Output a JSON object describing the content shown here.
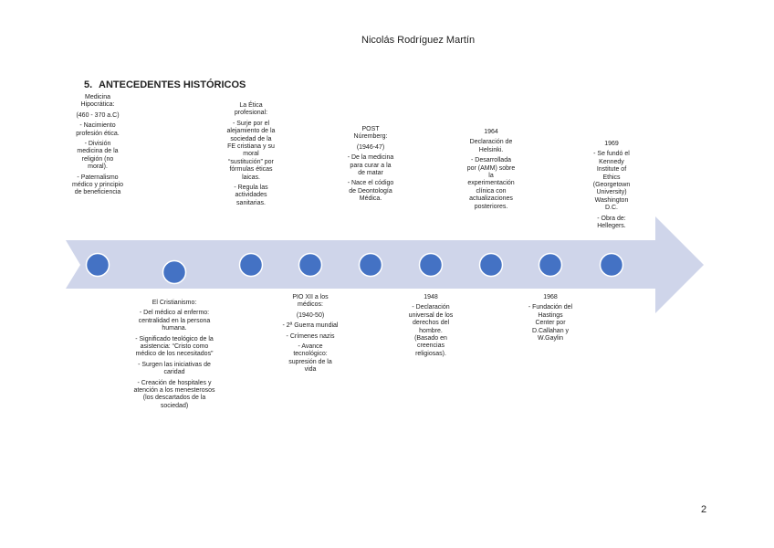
{
  "header": {
    "author": "Nicolás Rodríguez Martín"
  },
  "section": {
    "number": "5.",
    "title": "ANTECEDENTES HISTÓRICOS"
  },
  "timeline": {
    "top": [
      {
        "lines": [
          "Medicina Hipocrática:",
          "(460 - 370 a.C)",
          "- Nacimiento profesión ética.",
          "- División medicina de la religión (no moral).",
          "- Paternalismo médico y principio de beneficiencia"
        ]
      },
      {
        "lines": [
          "La Ética profesional:",
          "- Surje por el alejamiento de la sociedad de la FE cristiana y su moral “sustitución” por fórmulas éticas laicas.",
          "- Regula las actividades sanitarias."
        ]
      },
      {
        "lines": [
          "POST Núremberg:",
          "(1946-47)",
          "- De la medicina para curar a la de matar",
          "- Nace el código de Deontología Médica."
        ]
      },
      {
        "lines": [
          "1964",
          "Declaración de Helsinki.",
          "- Desarrollada por (AMM) sobre la experimentación clínica con actualizaciones posteriores."
        ]
      },
      {
        "lines": [
          "1969",
          "- Se fundó el Kennedy Institute of Ethics (Georgetown University) Washington D.C.",
          "- Obra de: Hellegers."
        ]
      }
    ],
    "bottom": [
      {
        "lines": [
          "El Cristianismo:",
          "- Del médico al enfermo: centralidad en la persona humana.",
          "- Significado teológico de la asistencia: “Cristo como médico de los necesitados”",
          "- Surgen las iniciativas de caridad",
          "- Creación de hospitales y atención a los menesterosos (los descartados de la sociedad)"
        ]
      },
      {
        "lines": [
          "PIO XII a los médicos:",
          "(1940-50)",
          "- 2ª Guerra mundial",
          "- Crímenes nazis",
          "- Avance tecnológico: supresión de la vida"
        ]
      },
      {
        "lines": [
          "1948",
          "- Declaración universal de los derechos del hombre. (Basado en creencias religiosas)."
        ]
      },
      {
        "lines": [
          "1968",
          "- Fundación del Hastings Center por D.Callahan y W.Gaylin"
        ]
      }
    ]
  },
  "footer": {
    "page_number": "2"
  }
}
